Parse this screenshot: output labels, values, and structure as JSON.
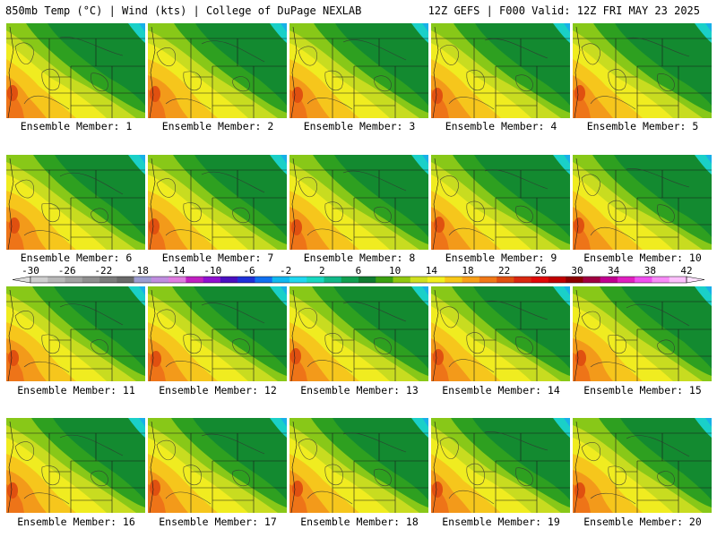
{
  "header": {
    "left": "850mb Temp (°C) | Wind (kts) | College of DuPage NEXLAB",
    "right": "12Z GEFS | F000 Valid: 12Z FRI MAY 23 2025"
  },
  "panel_label_prefix": "Ensemble Member:",
  "members": [
    {
      "number": "1"
    },
    {
      "number": "2"
    },
    {
      "number": "3"
    },
    {
      "number": "4"
    },
    {
      "number": "5"
    },
    {
      "number": "6"
    },
    {
      "number": "7"
    },
    {
      "number": "8"
    },
    {
      "number": "9"
    },
    {
      "number": "10"
    },
    {
      "number": "11"
    },
    {
      "number": "12"
    },
    {
      "number": "13"
    },
    {
      "number": "14"
    },
    {
      "number": "15"
    },
    {
      "number": "16"
    },
    {
      "number": "17"
    },
    {
      "number": "18"
    },
    {
      "number": "19"
    },
    {
      "number": "20"
    }
  ],
  "colorbar": {
    "tick_labels": [
      "-30",
      "-26",
      "-22",
      "-18",
      "-14",
      "-10",
      "-6",
      "-2",
      "2",
      "6",
      "10",
      "14",
      "18",
      "22",
      "26",
      "30",
      "34",
      "38",
      "42"
    ],
    "colors": [
      "#cfcfcf",
      "#b8b8b8",
      "#a3a3a3",
      "#8f8f8f",
      "#7c7c7c",
      "#6a6a6a",
      "#9c9cd0",
      "#c08ee0",
      "#e07ce0",
      "#c020c0",
      "#9010d0",
      "#4a10c0",
      "#1e30d8",
      "#1070f0",
      "#10b8f0",
      "#20d8f0",
      "#18d8c0",
      "#10b888",
      "#10a050",
      "#107c30",
      "#3aa010",
      "#90c810",
      "#d0e020",
      "#f4f020",
      "#f8c818",
      "#f8a018",
      "#f07818",
      "#e05010",
      "#d82810",
      "#e00808",
      "#c00000",
      "#8c0000",
      "#a00040",
      "#c00090",
      "#e020c0",
      "#f050f0",
      "#f88cf8",
      "#fcc0fc"
    ]
  },
  "legend_colors": {
    "teal": "#1ad0c8",
    "dark_green": "#138a30",
    "green": "#2ea020",
    "light_green": "#88c818",
    "yellow_green": "#c8dc20",
    "yellow": "#f0ec20",
    "orange_yellow": "#f6c61c",
    "orange": "#f39a1a",
    "dark_orange": "#ee7418",
    "red_orange": "#e05010"
  }
}
